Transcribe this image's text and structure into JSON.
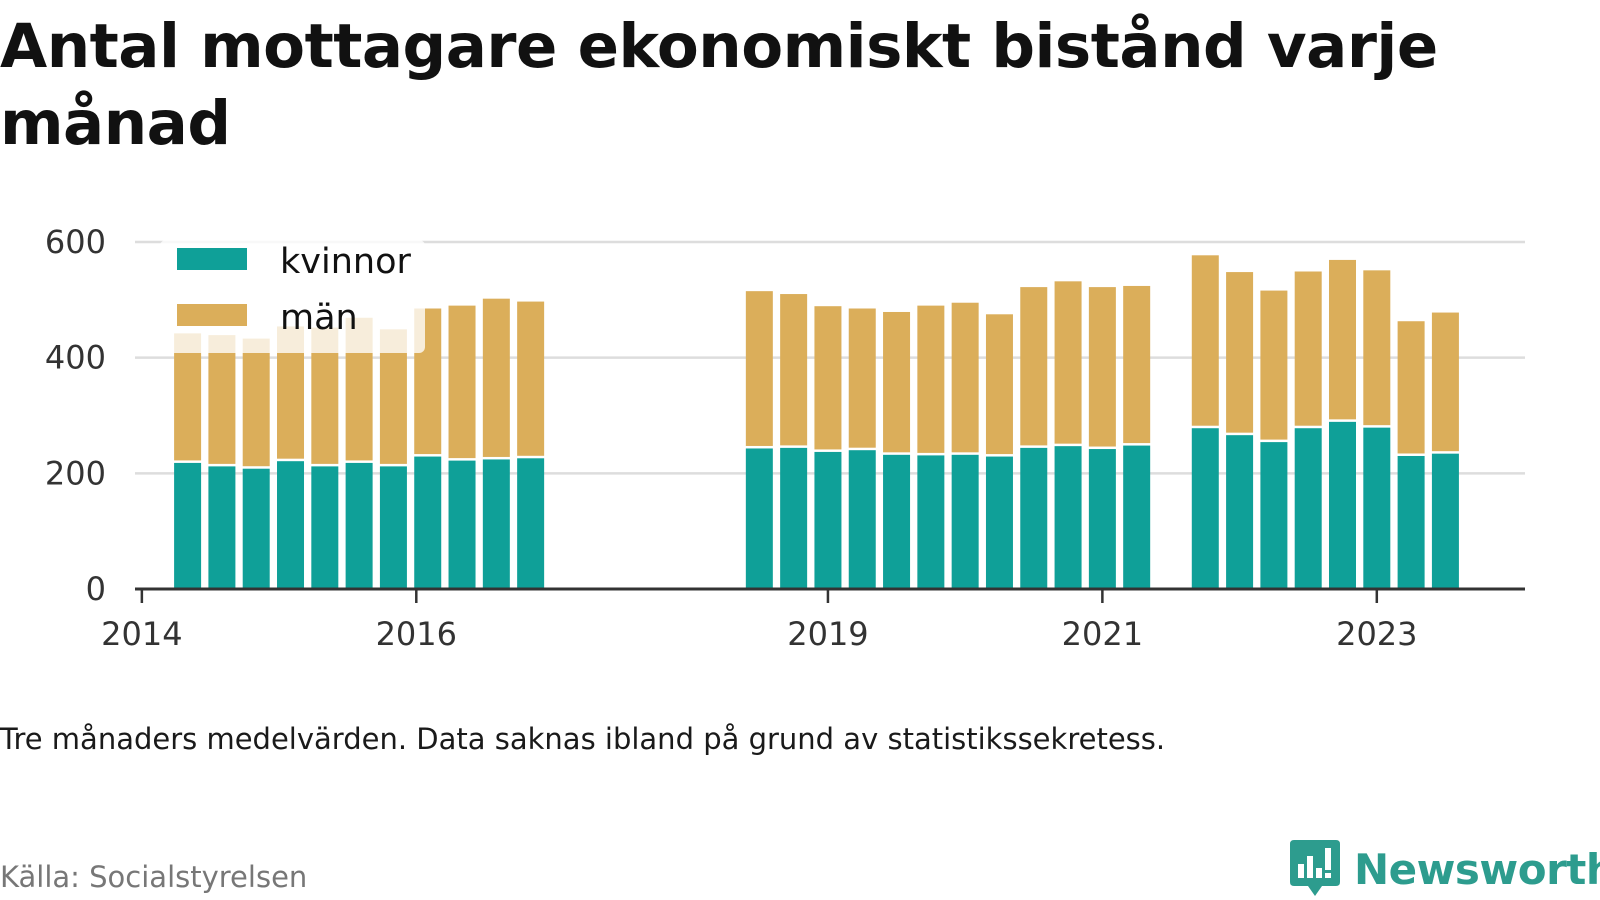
{
  "title": "Antal mottagare ekonomiskt bistånd varje månad",
  "note": "Tre månaders medelvärden. Data saknas ibland på grund av statistikssekretess.",
  "source": "Källa: Socialstyrelsen",
  "brand": "Newsworthy",
  "brand_icon": "bar-chart-speech-bubble-icon",
  "colors": {
    "kvinnor": "#0fa098",
    "man": "#dbae5a",
    "grid": "#dddddd",
    "axis": "#333333",
    "brand": "#2d9c8e"
  },
  "chart_data": {
    "type": "bar",
    "stacked": true,
    "ylim": [
      0,
      600
    ],
    "y_ticks": [
      "0",
      "200",
      "400",
      "600"
    ],
    "x_ticks": [
      {
        "label": "2014",
        "date": "2014-01"
      },
      {
        "label": "2016",
        "date": "2016-01"
      },
      {
        "label": "2019",
        "date": "2019-01"
      },
      {
        "label": "2021",
        "date": "2021-01"
      },
      {
        "label": "2023",
        "date": "2023-01"
      }
    ],
    "legend_position": "top-left",
    "grid": true,
    "categories": [
      "2014-05",
      "2014-08",
      "2014-11",
      "2015-02",
      "2015-05",
      "2015-08",
      "2015-11",
      "2016-02",
      "2016-05",
      "2016-08",
      "2016-11",
      "2018-07",
      "2018-10",
      "2019-01",
      "2019-04",
      "2019-07",
      "2019-10",
      "2020-01",
      "2020-04",
      "2020-07",
      "2020-10",
      "2021-01",
      "2021-04",
      "2021-10",
      "2022-01",
      "2022-04",
      "2022-07",
      "2022-10",
      "2023-01",
      "2023-04",
      "2023-07"
    ],
    "series": [
      {
        "name": "kvinnor",
        "values": [
          218,
          212,
          208,
          221,
          212,
          218,
          212,
          229,
          222,
          224,
          226,
          243,
          244,
          237,
          240,
          232,
          231,
          232,
          229,
          244,
          247,
          242,
          248,
          278,
          266,
          254,
          278,
          289,
          279,
          230,
          234
        ]
      },
      {
        "name": "män",
        "values": [
          224,
          227,
          225,
          233,
          240,
          251,
          237,
          256,
          268,
          278,
          271,
          272,
          266,
          252,
          245,
          247,
          259,
          263,
          246,
          278,
          285,
          280,
          276,
          299,
          282,
          262,
          271,
          280,
          272,
          233,
          244
        ]
      }
    ]
  }
}
